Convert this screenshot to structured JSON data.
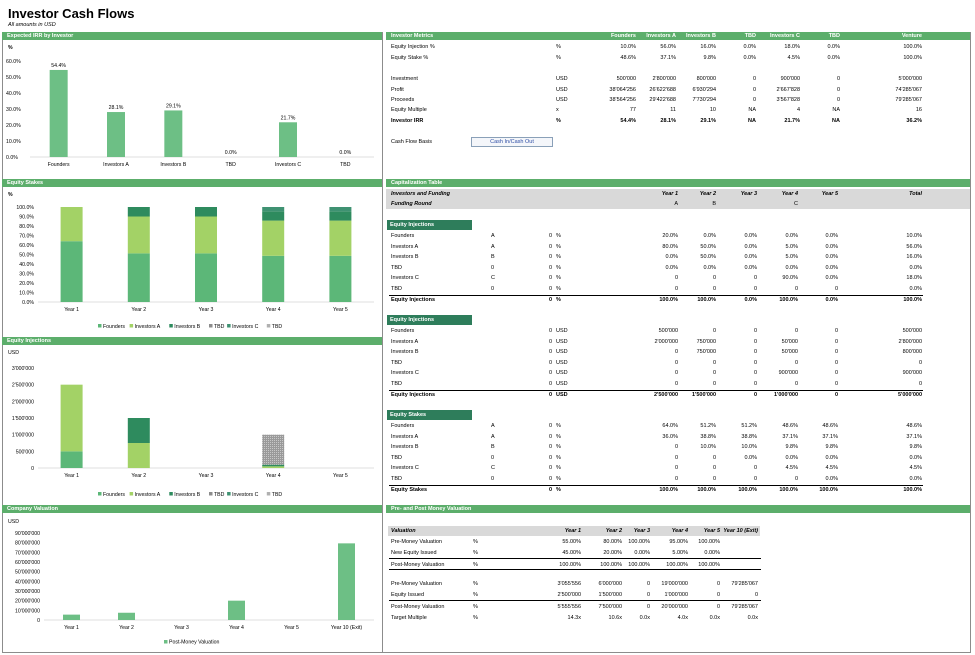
{
  "page": {
    "title": "Investor Cash Flows",
    "subtitle": "All amounts in USD"
  },
  "colors": {
    "band": "#5cae6b",
    "founders": "#5cb778",
    "investors_a": "#a3d266",
    "investors_b": "#2e8b5e",
    "tbd": "#8c8c8c",
    "investors_c": "#3f9272",
    "tbd2": "#b0b0b0",
    "valuation": "#6dbf85"
  },
  "irr_panel": {
    "band": "Expected IRR by Investor",
    "unit": "%",
    "chart_data": {
      "type": "bar",
      "categories": [
        "Founders",
        "Investors A",
        "Investors B",
        "TBD",
        "Investors C",
        "TBD"
      ],
      "values": [
        54.4,
        28.1,
        29.1,
        0.0,
        21.7,
        0.0
      ],
      "data_labels": [
        "54.4%",
        "28.1%",
        "29.1%",
        "0.0%",
        "21.7%",
        "0.0%"
      ],
      "yticks": [
        "0.0%",
        "10.0%",
        "20.0%",
        "30.0%",
        "40.0%",
        "50.0%",
        "60.0%"
      ],
      "ylim": [
        0,
        60
      ]
    }
  },
  "metrics": {
    "band": "Investor Metrics",
    "headers": [
      "Founders",
      "Investors A",
      "Investors B",
      "TBD",
      "Investors C",
      "TBD",
      "Venture"
    ],
    "rows": [
      {
        "label": "Equity Injection %",
        "unit": "%",
        "values": [
          "10.0%",
          "56.0%",
          "16.0%",
          "0.0%",
          "18.0%",
          "0.0%",
          "100.0%"
        ],
        "bold": false
      },
      {
        "label": "Equity Stake %",
        "unit": "%",
        "values": [
          "48.6%",
          "37.1%",
          "9.8%",
          "0.0%",
          "4.5%",
          "0.0%",
          "100.0%"
        ],
        "bold": false
      },
      {
        "label": "Investment",
        "unit": "USD",
        "values": [
          "500'000",
          "2'800'000",
          "800'000",
          "0",
          "900'000",
          "0",
          "5'000'000"
        ],
        "bold": false
      },
      {
        "label": "Profit",
        "unit": "USD",
        "values": [
          "38'064'256",
          "26'622'688",
          "6'930'294",
          "0",
          "2'667'828",
          "0",
          "74'285'067"
        ],
        "bold": false
      },
      {
        "label": "Proceeds",
        "unit": "USD",
        "values": [
          "38'564'256",
          "29'422'688",
          "7'730'294",
          "0",
          "3'567'828",
          "0",
          "79'285'067"
        ],
        "bold": false
      },
      {
        "label": "Equity Multiple",
        "unit": "x",
        "values": [
          "77",
          "11",
          "10",
          "NA",
          "4",
          "NA",
          "16"
        ],
        "bold": false
      },
      {
        "label": "Investor IRR",
        "unit": "%",
        "values": [
          "54.4%",
          "28.1%",
          "29.1%",
          "NA",
          "21.7%",
          "NA",
          "36.2%"
        ],
        "bold": true
      }
    ],
    "cash_flow_basis_label": "Cash Flow Basis",
    "cash_flow_basis_value": "Cash In/Cash Out"
  },
  "stakes_panel": {
    "band": "Equity Stakes",
    "unit": "%",
    "chart_data": {
      "type": "bar",
      "stacked": true,
      "categories": [
        "Year 1",
        "Year 2",
        "Year 3",
        "Year 4",
        "Year 5"
      ],
      "series": [
        {
          "name": "Founders",
          "values": [
            64.0,
            51.2,
            51.2,
            48.6,
            48.6
          ]
        },
        {
          "name": "Investors A",
          "values": [
            36.0,
            38.8,
            38.8,
            37.1,
            37.1
          ]
        },
        {
          "name": "Investors B",
          "values": [
            0.0,
            10.0,
            10.0,
            9.8,
            9.8
          ]
        },
        {
          "name": "TBD",
          "values": [
            0,
            0,
            0,
            0,
            0
          ]
        },
        {
          "name": "Investors C",
          "values": [
            0.0,
            0.0,
            0.0,
            4.5,
            4.5
          ]
        },
        {
          "name": "TBD",
          "values": [
            0,
            0,
            0,
            0,
            0
          ]
        }
      ],
      "yticks": [
        "0.0%",
        "10.0%",
        "20.0%",
        "30.0%",
        "40.0%",
        "50.0%",
        "60.0%",
        "70.0%",
        "80.0%",
        "90.0%",
        "100.0%"
      ],
      "ylim": [
        0,
        100
      ]
    }
  },
  "injections_panel": {
    "band": "Equity Injections",
    "unit": "USD",
    "chart_data": {
      "type": "bar",
      "stacked": true,
      "categories": [
        "Year 1",
        "Year 2",
        "Year 3",
        "Year 4",
        "Year 5"
      ],
      "series": [
        {
          "name": "Founders",
          "values": [
            500000,
            0,
            0,
            0,
            0
          ]
        },
        {
          "name": "Investors A",
          "values": [
            2000000,
            750000,
            0,
            50000,
            0
          ]
        },
        {
          "name": "Investors B",
          "values": [
            0,
            750000,
            0,
            50000,
            0
          ]
        },
        {
          "name": "TBD",
          "values": [
            0,
            0,
            0,
            0,
            0
          ]
        },
        {
          "name": "Investors C",
          "values": [
            0,
            0,
            0,
            900000,
            0
          ]
        },
        {
          "name": "TBD",
          "values": [
            0,
            0,
            0,
            0,
            0
          ]
        }
      ],
      "yticks": [
        "0",
        "500'000",
        "1'000'000",
        "1'500'000",
        "2'000'000",
        "2'500'000",
        "3'000'000"
      ],
      "ylim": [
        0,
        3000000
      ]
    }
  },
  "valuation_panel": {
    "band": "Company Valuation",
    "unit": "USD",
    "chart_data": {
      "type": "bar",
      "categories": [
        "Year 1",
        "Year 2",
        "Year 3",
        "Year 4",
        "Year 5",
        "Year 10 (Exit)"
      ],
      "series": [
        {
          "name": "Post-Money Valuation",
          "values": [
            5555556,
            7500000,
            0,
            20000000,
            0,
            79285067
          ]
        }
      ],
      "yticks": [
        "0",
        "10'000'000",
        "20'000'000",
        "30'000'000",
        "40'000'000",
        "50'000'000",
        "60'000'000",
        "70'000'000",
        "80'000'000",
        "90'000'000"
      ],
      "ylim": [
        0,
        90000000
      ]
    }
  },
  "cap_table": {
    "band": "Capitalization Table",
    "header_label": "Investors and Funding",
    "years": [
      "Year 1",
      "Year 2",
      "Year 3",
      "Year 4",
      "Year 5",
      "Total"
    ],
    "funding_round_label": "Funding Round",
    "funding_round": [
      "A",
      "B",
      "",
      "C",
      "",
      ""
    ],
    "sections": [
      {
        "title": "Equity Injections",
        "rows": [
          {
            "label": "Founders",
            "round": "A",
            "n": "0",
            "unit": "%",
            "values": [
              "20.0%",
              "0.0%",
              "0.0%",
              "0.0%",
              "0.0%",
              "10.0%"
            ]
          },
          {
            "label": "Investors A",
            "round": "A",
            "n": "0",
            "unit": "%",
            "values": [
              "80.0%",
              "50.0%",
              "0.0%",
              "5.0%",
              "0.0%",
              "56.0%"
            ]
          },
          {
            "label": "Investors B",
            "round": "B",
            "n": "0",
            "unit": "%",
            "values": [
              "0.0%",
              "50.0%",
              "0.0%",
              "5.0%",
              "0.0%",
              "16.0%"
            ]
          },
          {
            "label": "TBD",
            "round": "0",
            "n": "0",
            "unit": "%",
            "values": [
              "0.0%",
              "0.0%",
              "0.0%",
              "0.0%",
              "0.0%",
              "0.0%"
            ]
          },
          {
            "label": "Investors C",
            "round": "C",
            "n": "0",
            "unit": "%",
            "values": [
              "0",
              "0",
              "0",
              "90.0%",
              "0.0%",
              "18.0%"
            ]
          },
          {
            "label": "TBD",
            "round": "0",
            "n": "0",
            "unit": "%",
            "values": [
              "0",
              "0",
              "0",
              "0",
              "0",
              "0.0%"
            ]
          }
        ],
        "total": {
          "label": "Equity Injections",
          "n": "0",
          "unit": "%",
          "values": [
            "100.0%",
            "100.0%",
            "0.0%",
            "100.0%",
            "0.0%",
            "100.0%"
          ]
        }
      },
      {
        "title": "Equity Injections",
        "rows": [
          {
            "label": "Founders",
            "round": "",
            "n": "0",
            "unit": "USD",
            "values": [
              "500'000",
              "0",
              "0",
              "0",
              "0",
              "500'000"
            ]
          },
          {
            "label": "Investors A",
            "round": "",
            "n": "0",
            "unit": "USD",
            "values": [
              "2'000'000",
              "750'000",
              "0",
              "50'000",
              "0",
              "2'800'000"
            ]
          },
          {
            "label": "Investors B",
            "round": "",
            "n": "0",
            "unit": "USD",
            "values": [
              "0",
              "750'000",
              "0",
              "50'000",
              "0",
              "800'000"
            ]
          },
          {
            "label": "TBD",
            "round": "",
            "n": "0",
            "unit": "USD",
            "values": [
              "0",
              "0",
              "0",
              "0",
              "0",
              "0"
            ]
          },
          {
            "label": "Investors C",
            "round": "",
            "n": "0",
            "unit": "USD",
            "values": [
              "0",
              "0",
              "0",
              "900'000",
              "0",
              "900'000"
            ]
          },
          {
            "label": "TBD",
            "round": "",
            "n": "0",
            "unit": "USD",
            "values": [
              "0",
              "0",
              "0",
              "0",
              "0",
              "0"
            ]
          }
        ],
        "total": {
          "label": "Equity Injections",
          "n": "0",
          "unit": "USD",
          "values": [
            "2'500'000",
            "1'500'000",
            "0",
            "1'000'000",
            "0",
            "5'000'000"
          ]
        }
      },
      {
        "title": "Equity Stakes",
        "rows": [
          {
            "label": "Founders",
            "round": "A",
            "n": "0",
            "unit": "%",
            "values": [
              "64.0%",
              "51.2%",
              "51.2%",
              "48.6%",
              "48.6%",
              "48.6%"
            ]
          },
          {
            "label": "Investors A",
            "round": "A",
            "n": "0",
            "unit": "%",
            "values": [
              "36.0%",
              "38.8%",
              "38.8%",
              "37.1%",
              "37.1%",
              "37.1%"
            ]
          },
          {
            "label": "Investors B",
            "round": "B",
            "n": "0",
            "unit": "%",
            "values": [
              "0",
              "10.0%",
              "10.0%",
              "9.8%",
              "9.8%",
              "9.8%"
            ]
          },
          {
            "label": "TBD",
            "round": "0",
            "n": "0",
            "unit": "%",
            "values": [
              "0",
              "0",
              "0.0%",
              "0.0%",
              "0.0%",
              "0.0%"
            ]
          },
          {
            "label": "Investors C",
            "round": "C",
            "n": "0",
            "unit": "%",
            "values": [
              "0",
              "0",
              "0",
              "4.5%",
              "4.5%",
              "4.5%"
            ]
          },
          {
            "label": "TBD",
            "round": "0",
            "n": "0",
            "unit": "%",
            "values": [
              "0",
              "0",
              "0",
              "0",
              "0.0%",
              "0.0%"
            ]
          }
        ],
        "total": {
          "label": "Equity Stakes",
          "n": "0",
          "unit": "%",
          "values": [
            "100.0%",
            "100.0%",
            "100.0%",
            "100.0%",
            "100.0%",
            "100.0%"
          ]
        }
      }
    ]
  },
  "prepost": {
    "band": "Pre- and Post Money Valuation",
    "header_label": "Valuation",
    "years": [
      "Year 1",
      "Year 2",
      "Year 3",
      "Year 4",
      "Year 5",
      "Year 10 (Exit)"
    ],
    "group1": [
      {
        "label": "Pre-Money Valuation",
        "unit": "%",
        "values": [
          "55.00%",
          "80.00%",
          "100.00%",
          "95.00%",
          "100.00%",
          ""
        ]
      },
      {
        "label": "New Equity Issued",
        "unit": "%",
        "values": [
          "45.00%",
          "20.00%",
          "0.00%",
          "5.00%",
          "0.00%",
          ""
        ]
      },
      {
        "label": "Post-Money Valuation",
        "unit": "%",
        "values": [
          "100.00%",
          "100.00%",
          "100.00%",
          "100.00%",
          "100.00%",
          ""
        ]
      }
    ],
    "group2": [
      {
        "label": "Pre-Money Valuation",
        "unit": "%",
        "values": [
          "3'055'556",
          "6'000'000",
          "0",
          "19'000'000",
          "0",
          "79'285'067"
        ]
      },
      {
        "label": "Equity Issued",
        "unit": "%",
        "values": [
          "2'500'000",
          "1'500'000",
          "0",
          "1'000'000",
          "0",
          "0"
        ]
      },
      {
        "label": "Post-Money Valuation",
        "unit": "%",
        "values": [
          "5'555'556",
          "7'500'000",
          "0",
          "20'000'000",
          "0",
          "79'285'067"
        ]
      },
      {
        "label": "Target Multiple",
        "unit": "%",
        "values": [
          "14.3x",
          "10.6x",
          "0.0x",
          "4.0x",
          "0.0x",
          "0.0x"
        ]
      }
    ]
  }
}
